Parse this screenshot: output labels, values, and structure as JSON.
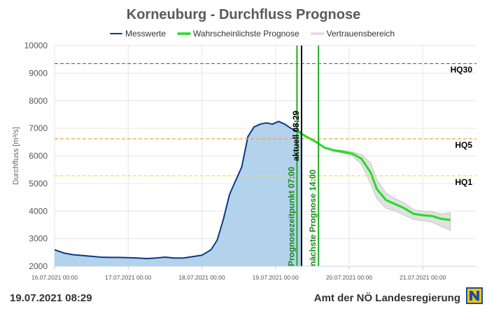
{
  "page": {
    "title": "Korneuburg - Durchfluss Prognose",
    "footer_date": "19.07.2021 08:29",
    "footer_org": "Amt der NÖ Landesregierung",
    "logo_icon": "noe-logo-icon"
  },
  "chart_data": {
    "type": "line",
    "title": "Korneuburg - Durchfluss Prognose",
    "ylabel": "Durchfluss [m³/s]",
    "xlabel": "",
    "ylim": [
      2000,
      10000
    ],
    "yticks": [
      2000,
      3000,
      4000,
      5000,
      6000,
      7000,
      8000,
      9000,
      10000
    ],
    "xlim": [
      "16.07.2021 00:00",
      "21.07.2021 17:30"
    ],
    "xticks": [
      "16.07.2021 00:00",
      "17.07.2021 00:00",
      "18.07.2021 00:00",
      "19.07.2021 00:00",
      "20.07.2021 00:00",
      "21.07.2021 00:00"
    ],
    "grid": true,
    "legend": "top-center",
    "legend_entries": [
      {
        "name": "Messwerte",
        "color": "#0b3a84"
      },
      {
        "name": "Wahrscheinlichste Prognose",
        "color": "#22dd22"
      },
      {
        "name": "Vertrauensbereich",
        "color": "#dcdcdc"
      }
    ],
    "series": [
      {
        "name": "Messwerte",
        "color": "#0b3a84",
        "fill": "#b3d3ec",
        "points": [
          [
            "16.07.2021 00:00",
            2600
          ],
          [
            "16.07.2021 03:00",
            2480
          ],
          [
            "16.07.2021 06:00",
            2420
          ],
          [
            "16.07.2021 09:00",
            2390
          ],
          [
            "16.07.2021 12:00",
            2360
          ],
          [
            "16.07.2021 15:00",
            2330
          ],
          [
            "16.07.2021 18:00",
            2320
          ],
          [
            "16.07.2021 21:00",
            2320
          ],
          [
            "17.07.2021 00:00",
            2310
          ],
          [
            "17.07.2021 03:00",
            2300
          ],
          [
            "17.07.2021 06:00",
            2280
          ],
          [
            "17.07.2021 09:00",
            2300
          ],
          [
            "17.07.2021 12:00",
            2330
          ],
          [
            "17.07.2021 15:00",
            2300
          ],
          [
            "17.07.2021 18:00",
            2300
          ],
          [
            "17.07.2021 21:00",
            2350
          ],
          [
            "18.07.2021 00:00",
            2400
          ],
          [
            "18.07.2021 03:00",
            2600
          ],
          [
            "18.07.2021 05:00",
            2950
          ],
          [
            "18.07.2021 07:00",
            3700
          ],
          [
            "18.07.2021 09:00",
            4600
          ],
          [
            "18.07.2021 11:00",
            5100
          ],
          [
            "18.07.2021 13:00",
            5600
          ],
          [
            "18.07.2021 15:00",
            6700
          ],
          [
            "18.07.2021 17:00",
            7050
          ],
          [
            "18.07.2021 19:00",
            7150
          ],
          [
            "18.07.2021 21:00",
            7200
          ],
          [
            "18.07.2021 23:00",
            7150
          ],
          [
            "19.07.2021 01:00",
            7250
          ],
          [
            "19.07.2021 03:00",
            7150
          ],
          [
            "19.07.2021 05:00",
            7000
          ],
          [
            "19.07.2021 07:00",
            6900
          ],
          [
            "19.07.2021 08:29",
            6850
          ]
        ]
      },
      {
        "name": "Wahrscheinlichste Prognose",
        "color": "#22dd22",
        "points": [
          [
            "19.07.2021 07:00",
            6900
          ],
          [
            "19.07.2021 10:00",
            6700
          ],
          [
            "19.07.2021 13:00",
            6520
          ],
          [
            "19.07.2021 16:00",
            6300
          ],
          [
            "19.07.2021 19:00",
            6200
          ],
          [
            "19.07.2021 22:00",
            6150
          ],
          [
            "20.07.2021 01:00",
            6080
          ],
          [
            "20.07.2021 04:00",
            5900
          ],
          [
            "20.07.2021 07:00",
            5400
          ],
          [
            "20.07.2021 09:00",
            4800
          ],
          [
            "20.07.2021 12:00",
            4400
          ],
          [
            "20.07.2021 15:00",
            4250
          ],
          [
            "20.07.2021 18:00",
            4100
          ],
          [
            "20.07.2021 21:00",
            3900
          ],
          [
            "21.07.2021 00:00",
            3850
          ],
          [
            "21.07.2021 03:00",
            3820
          ],
          [
            "21.07.2021 06:00",
            3720
          ],
          [
            "21.07.2021 09:00",
            3680
          ]
        ]
      },
      {
        "name": "Vertrauensbereich",
        "color": "#dcdcdc",
        "upper": [
          [
            "19.07.2021 07:00",
            6920
          ],
          [
            "19.07.2021 10:00",
            6720
          ],
          [
            "19.07.2021 13:00",
            6540
          ],
          [
            "19.07.2021 16:00",
            6320
          ],
          [
            "19.07.2021 19:00",
            6230
          ],
          [
            "19.07.2021 22:00",
            6200
          ],
          [
            "20.07.2021 01:00",
            6150
          ],
          [
            "20.07.2021 04:00",
            6050
          ],
          [
            "20.07.2021 07:00",
            5750
          ],
          [
            "20.07.2021 09:00",
            5150
          ],
          [
            "20.07.2021 12:00",
            4650
          ],
          [
            "20.07.2021 15:00",
            4450
          ],
          [
            "20.07.2021 18:00",
            4300
          ],
          [
            "20.07.2021 21:00",
            4050
          ],
          [
            "21.07.2021 00:00",
            4000
          ],
          [
            "21.07.2021 03:00",
            3980
          ],
          [
            "21.07.2021 06:00",
            3900
          ],
          [
            "21.07.2021 09:00",
            3950
          ]
        ],
        "lower": [
          [
            "19.07.2021 07:00",
            6880
          ],
          [
            "19.07.2021 10:00",
            6680
          ],
          [
            "19.07.2021 13:00",
            6500
          ],
          [
            "19.07.2021 16:00",
            6280
          ],
          [
            "19.07.2021 19:00",
            6170
          ],
          [
            "19.07.2021 22:00",
            6100
          ],
          [
            "20.07.2021 01:00",
            6000
          ],
          [
            "20.07.2021 04:00",
            5700
          ],
          [
            "20.07.2021 07:00",
            5000
          ],
          [
            "20.07.2021 09:00",
            4450
          ],
          [
            "20.07.2021 12:00",
            4100
          ],
          [
            "20.07.2021 15:00",
            4000
          ],
          [
            "20.07.2021 18:00",
            3850
          ],
          [
            "20.07.2021 21:00",
            3700
          ],
          [
            "21.07.2021 00:00",
            3650
          ],
          [
            "21.07.2021 03:00",
            3600
          ],
          [
            "21.07.2021 06:00",
            3450
          ],
          [
            "21.07.2021 09:00",
            3300
          ]
        ]
      }
    ],
    "thresholds": [
      {
        "label": "HQ30",
        "value": 9350,
        "color": "#e84040"
      },
      {
        "label": "HQ5",
        "value": 6620,
        "color": "#f0a040"
      },
      {
        "label": "HQ1",
        "value": 5280,
        "color": "#f0e040"
      }
    ],
    "markers": [
      {
        "label": "Prognosezeitpunkt 07:00",
        "time": "19.07.2021 07:00",
        "color": "#22aa22",
        "text_color": "#1a8a1a"
      },
      {
        "label": "aktuell 08:29",
        "time": "19.07.2021 08:29",
        "color": "#000000",
        "text_color": "#000000"
      },
      {
        "label": "nächste Prognose 14:00",
        "time": "19.07.2021 14:00",
        "color": "#22aa22",
        "text_color": "#1a8a1a"
      }
    ]
  }
}
